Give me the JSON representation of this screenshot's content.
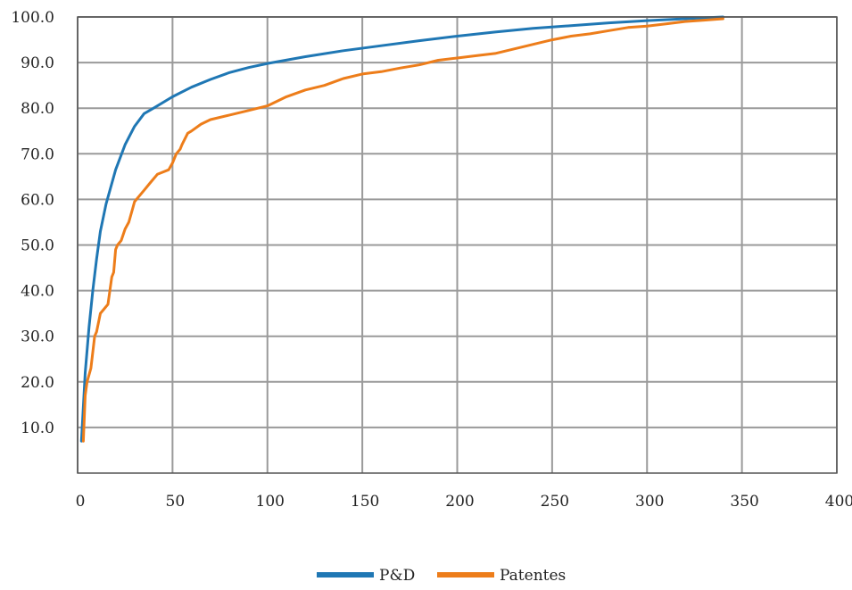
{
  "chart_data": {
    "type": "line",
    "title": "",
    "xlabel": "",
    "ylabel": "",
    "xlim": [
      0,
      400
    ],
    "ylim": [
      0,
      100
    ],
    "grid": true,
    "legend_position": "bottom-center",
    "x_ticks": [
      "0",
      "50",
      "100",
      "150",
      "200",
      "250",
      "300",
      "350",
      "400"
    ],
    "y_ticks": [
      "10.0",
      "20.0",
      "30.0",
      "40.0",
      "50.0",
      "60.0",
      "70.0",
      "80.0",
      "90.0",
      "100.0"
    ],
    "series": [
      {
        "name": "P&D",
        "color": "#1f77b4",
        "x": [
          2,
          4,
          6,
          8,
          10,
          12,
          15,
          20,
          25,
          30,
          35,
          40,
          50,
          60,
          70,
          80,
          90,
          100,
          120,
          140,
          160,
          180,
          200,
          220,
          240,
          260,
          280,
          300,
          320,
          340
        ],
        "y": [
          7.0,
          22.0,
          32.0,
          40.0,
          47.0,
          53.0,
          59.0,
          66.5,
          72.0,
          76.0,
          78.8,
          80.0,
          82.5,
          84.6,
          86.3,
          87.8,
          88.9,
          89.8,
          91.3,
          92.6,
          93.7,
          94.8,
          95.8,
          96.7,
          97.5,
          98.1,
          98.7,
          99.2,
          99.6,
          100.0
        ]
      },
      {
        "name": "Patentes",
        "color": "#ed7d1a",
        "x": [
          3,
          4,
          5,
          7,
          9,
          10,
          12,
          14,
          16,
          18,
          19,
          20,
          21,
          23,
          25,
          27,
          29,
          30,
          32,
          35,
          38,
          40,
          42,
          45,
          48,
          50,
          52,
          54,
          55,
          58,
          60,
          65,
          70,
          80,
          90,
          100,
          110,
          120,
          130,
          140,
          150,
          160,
          170,
          180,
          190,
          200,
          210,
          220,
          230,
          240,
          250,
          260,
          270,
          280,
          290,
          300,
          310,
          320,
          330,
          340
        ],
        "y": [
          7.0,
          17.0,
          20.0,
          23.0,
          30.0,
          31.0,
          35.0,
          36.0,
          37.0,
          43.0,
          44.0,
          49.0,
          50.0,
          51.0,
          53.5,
          55.0,
          58.0,
          59.5,
          60.5,
          62.0,
          63.5,
          64.5,
          65.5,
          66.0,
          66.5,
          68.0,
          70.0,
          71.0,
          72.0,
          74.5,
          75.0,
          76.5,
          77.5,
          78.5,
          79.5,
          80.5,
          82.5,
          84.0,
          85.0,
          86.5,
          87.5,
          88.0,
          88.8,
          89.5,
          90.5,
          91.0,
          91.5,
          92.0,
          93.0,
          94.0,
          95.0,
          95.8,
          96.3,
          97.0,
          97.7,
          98.0,
          98.5,
          99.0,
          99.3,
          99.6
        ]
      }
    ]
  }
}
